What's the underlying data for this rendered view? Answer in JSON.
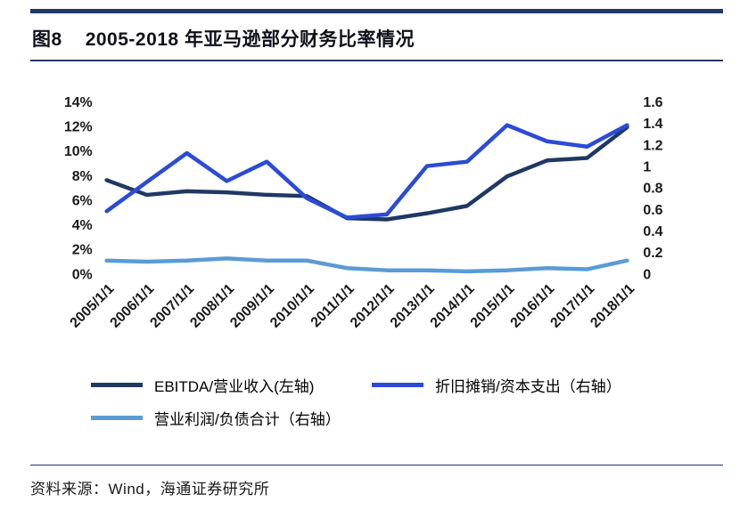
{
  "header": {
    "figure_label": "图8",
    "title": "2005-2018 年亚马逊部分财务比率情况"
  },
  "footer": {
    "source": "资料来源：Wind，海通证券研究所"
  },
  "colors": {
    "rule_navy": "#1F3864",
    "series": [
      "#1F3864",
      "#2B4BD7",
      "#5B9BD5"
    ]
  },
  "chart_data": {
    "type": "line",
    "title": "2005-2018 年亚马逊部分财务比率情况",
    "grid": false,
    "legend_position": "bottom",
    "categories": [
      "2005/1/1",
      "2006/1/1",
      "2007/1/1",
      "2008/1/1",
      "2009/1/1",
      "2010/1/1",
      "2011/1/1",
      "2012/1/1",
      "2013/1/1",
      "2014/1/1",
      "2015/1/1",
      "2016/1/1",
      "2017/1/1",
      "2018/1/1"
    ],
    "left_axis": {
      "min": 0,
      "max": 14,
      "unit": "%",
      "ticks": [
        "0%",
        "2%",
        "4%",
        "6%",
        "8%",
        "10%",
        "12%",
        "14%"
      ]
    },
    "right_axis": {
      "min": 0,
      "max": 1.6,
      "ticks": [
        "0",
        "0.2",
        "0.4",
        "0.6",
        "0.8",
        "1",
        "1.2",
        "1.4",
        "1.6"
      ]
    },
    "series": [
      {
        "name": "EBITDA/营业收入(左轴)",
        "axis": "left",
        "values": [
          7.6,
          6.4,
          6.7,
          6.6,
          6.4,
          6.3,
          4.5,
          4.4,
          4.9,
          5.5,
          7.9,
          9.2,
          9.4,
          11.9
        ]
      },
      {
        "name": "折旧摊销/资本支出（右轴）",
        "axis": "right",
        "values": [
          0.58,
          0.85,
          1.12,
          0.86,
          1.04,
          0.7,
          0.52,
          0.55,
          1.0,
          1.04,
          1.38,
          1.23,
          1.18,
          1.38
        ]
      },
      {
        "name": "营业利润/负债合计（右轴）",
        "axis": "right",
        "values": [
          0.12,
          0.11,
          0.12,
          0.14,
          0.12,
          0.12,
          0.05,
          0.03,
          0.03,
          0.02,
          0.03,
          0.05,
          0.04,
          0.12
        ]
      }
    ]
  }
}
